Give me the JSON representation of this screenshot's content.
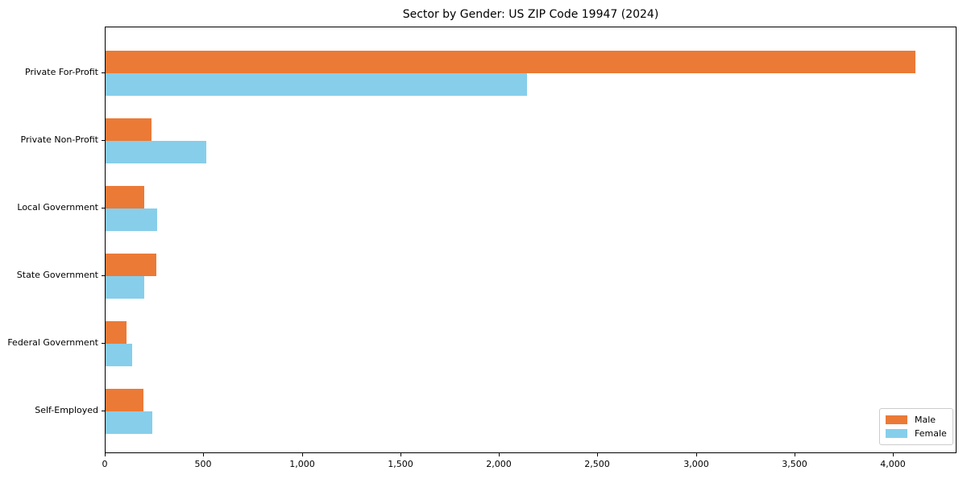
{
  "chart_data": {
    "type": "bar",
    "orientation": "horizontal",
    "title": "Sector by Gender: US ZIP Code 19947 (2024)",
    "xlabel": "",
    "ylabel": "",
    "categories": [
      "Private For-Profit",
      "Private Non-Profit",
      "Local Government",
      "State Government",
      "Federal Government",
      "Self-Employed"
    ],
    "series": [
      {
        "name": "Male",
        "color": "#EB7A36",
        "values": [
          4110,
          233,
          196,
          258,
          106,
          192
        ]
      },
      {
        "name": "Female",
        "color": "#87CEEB",
        "values": [
          2139,
          511,
          262,
          196,
          135,
          237
        ]
      }
    ],
    "xlim": [
      0,
      4323
    ],
    "xticks": [
      0,
      500,
      1000,
      1500,
      2000,
      2500,
      3000,
      3500,
      4000
    ],
    "xtick_labels": [
      "0",
      "500",
      "1,000",
      "1,500",
      "2,000",
      "2,500",
      "3,000",
      "3,500",
      "4,000"
    ],
    "grid": false,
    "legend_position": "lower right",
    "legend_items": [
      {
        "label": "Male",
        "color": "#EB7A36"
      },
      {
        "label": "Female",
        "color": "#87CEEB"
      }
    ]
  },
  "colors": {
    "male": "#EB7A36",
    "female": "#87CEEB",
    "spine": "#000000",
    "background": "#ffffff",
    "legend_border": "#cccccc"
  }
}
